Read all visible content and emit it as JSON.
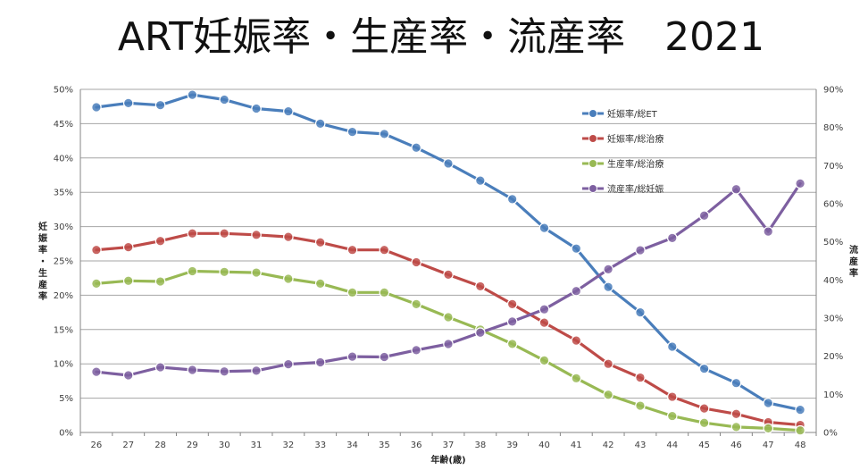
{
  "chart_data": {
    "type": "line",
    "title": "ART妊娠率・生産率・流産率　2021",
    "xlabel": "年齢(歳)",
    "ylabel_left": "妊娠率・生産率",
    "ylabel_right": "流産率",
    "categories": [
      "26",
      "27",
      "28",
      "29",
      "30",
      "31",
      "32",
      "33",
      "34",
      "35",
      "36",
      "37",
      "38",
      "39",
      "40",
      "41",
      "42",
      "43",
      "44",
      "45",
      "46",
      "47",
      "48"
    ],
    "ylim_left": [
      0,
      50
    ],
    "yticks_left": [
      "0%",
      "5%",
      "10%",
      "15%",
      "20%",
      "25%",
      "30%",
      "35%",
      "40%",
      "45%",
      "50%"
    ],
    "ylim_right": [
      0,
      90
    ],
    "yticks_right": [
      "0%",
      "10%",
      "20%",
      "30%",
      "40%",
      "50%",
      "60%",
      "70%",
      "80%",
      "90%"
    ],
    "grid": true,
    "legend_position": "top-right",
    "series": [
      {
        "name": "妊娠率/総ET",
        "axis": "left",
        "color": "#4A7EBB",
        "values": [
          47.4,
          48.0,
          47.7,
          49.2,
          48.5,
          47.2,
          46.8,
          45.0,
          43.8,
          43.5,
          41.5,
          39.2,
          36.7,
          34.0,
          29.8,
          26.8,
          21.2,
          17.5,
          12.5,
          9.3,
          7.2,
          4.3,
          3.3
        ]
      },
      {
        "name": "妊娠率/総治療",
        "axis": "left",
        "color": "#BE4B48",
        "values": [
          26.6,
          27.0,
          27.9,
          29.0,
          29.0,
          28.8,
          28.5,
          27.7,
          26.6,
          26.6,
          24.8,
          23.0,
          21.3,
          18.7,
          16.0,
          13.4,
          10.0,
          8.0,
          5.2,
          3.5,
          2.7,
          1.5,
          1.1
        ]
      },
      {
        "name": "生産率/総治療",
        "axis": "left",
        "color": "#98B954",
        "values": [
          21.7,
          22.1,
          22.0,
          23.5,
          23.4,
          23.3,
          22.4,
          21.7,
          20.4,
          20.4,
          18.7,
          16.8,
          15.0,
          12.9,
          10.5,
          7.9,
          5.5,
          3.9,
          2.4,
          1.4,
          0.8,
          0.6,
          0.3
        ]
      },
      {
        "name": "流産率/総妊娠",
        "axis": "right",
        "color": "#7D5FA0",
        "values": [
          15.9,
          15.0,
          17.1,
          16.4,
          16.0,
          16.2,
          17.9,
          18.4,
          19.9,
          19.8,
          21.6,
          23.2,
          26.2,
          29.1,
          32.3,
          37.1,
          42.8,
          47.8,
          51.0,
          56.9,
          63.8,
          52.7,
          65.3
        ]
      }
    ]
  }
}
